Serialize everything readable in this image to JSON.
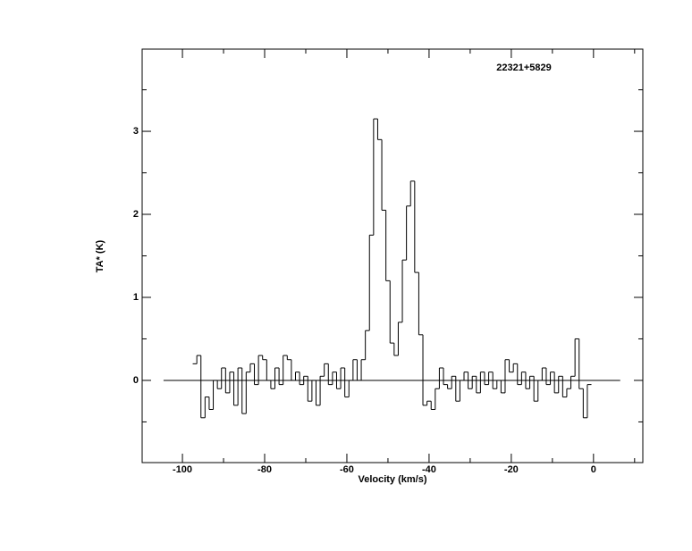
{
  "chart_data": {
    "type": "step",
    "title": "22321+5829",
    "x_label": "Velocity (km/s)",
    "y_label": "TA* (K)",
    "x": [
      -97,
      -96,
      -95,
      -94,
      -93,
      -92,
      -91,
      -90,
      -89,
      -88,
      -87,
      -86,
      -85,
      -84,
      -83,
      -82,
      -81,
      -80,
      -79,
      -78,
      -77,
      -76,
      -75,
      -74,
      -73,
      -72,
      -71,
      -70,
      -69,
      -68,
      -67,
      -66,
      -65,
      -64,
      -63,
      -62,
      -61,
      -60,
      -59,
      -58,
      -57,
      -56,
      -55,
      -54,
      -53,
      -52,
      -51,
      -50,
      -49,
      -48,
      -47,
      -46,
      -45,
      -44,
      -43,
      -42,
      -41,
      -40,
      -39,
      -38,
      -37,
      -36,
      -35,
      -34,
      -33,
      -32,
      -31,
      -30,
      -29,
      -28,
      -27,
      -26,
      -25,
      -24,
      -23,
      -22,
      -21,
      -20,
      -19,
      -18,
      -17,
      -16,
      -15,
      -14,
      -13,
      -12,
      -11,
      -10,
      -9,
      -8,
      -7,
      -6,
      -5,
      -4,
      -3,
      -2,
      -1
    ],
    "values": [
      0.2,
      0.3,
      -0.45,
      -0.2,
      -0.35,
      0.0,
      -0.1,
      0.15,
      -0.15,
      0.1,
      -0.3,
      0.15,
      -0.4,
      0.1,
      0.2,
      -0.05,
      0.3,
      0.25,
      0.0,
      -0.1,
      0.15,
      -0.05,
      0.3,
      0.25,
      0.0,
      0.1,
      -0.05,
      0.05,
      -0.25,
      0.0,
      -0.3,
      0.05,
      0.2,
      -0.05,
      0.1,
      -0.1,
      0.15,
      -0.2,
      0.0,
      0.25,
      0.0,
      0.25,
      0.6,
      1.75,
      3.15,
      2.9,
      2.05,
      1.2,
      0.45,
      0.3,
      0.7,
      1.45,
      2.1,
      2.4,
      1.3,
      0.55,
      -0.3,
      -0.25,
      -0.35,
      -0.1,
      0.15,
      -0.05,
      -0.1,
      0.05,
      -0.25,
      0.0,
      0.1,
      -0.1,
      0.05,
      -0.15,
      0.1,
      -0.05,
      0.1,
      -0.1,
      0.0,
      -0.15,
      0.25,
      0.1,
      0.2,
      -0.05,
      0.1,
      -0.1,
      0.05,
      -0.25,
      0.0,
      0.15,
      -0.05,
      0.1,
      -0.15,
      0.05,
      -0.2,
      -0.1,
      0.05,
      0.5,
      -0.1,
      -0.45,
      -0.05
    ],
    "color": "#000000",
    "xlim": [
      -109.8,
      12
    ],
    "ylim": [
      -0.99,
      3.99
    ],
    "xticks": [
      -100,
      -80,
      -60,
      -40,
      -20,
      0
    ],
    "yticks": [
      0,
      1,
      2,
      3
    ],
    "xminor": [
      -90,
      -70,
      -50,
      -30,
      -10,
      10
    ],
    "yminor": [
      -0.5,
      0.5,
      1.5,
      2.5,
      3.5
    ],
    "baseline": {
      "value": 0,
      "xrange": [
        -104.6,
        6.5
      ]
    }
  }
}
